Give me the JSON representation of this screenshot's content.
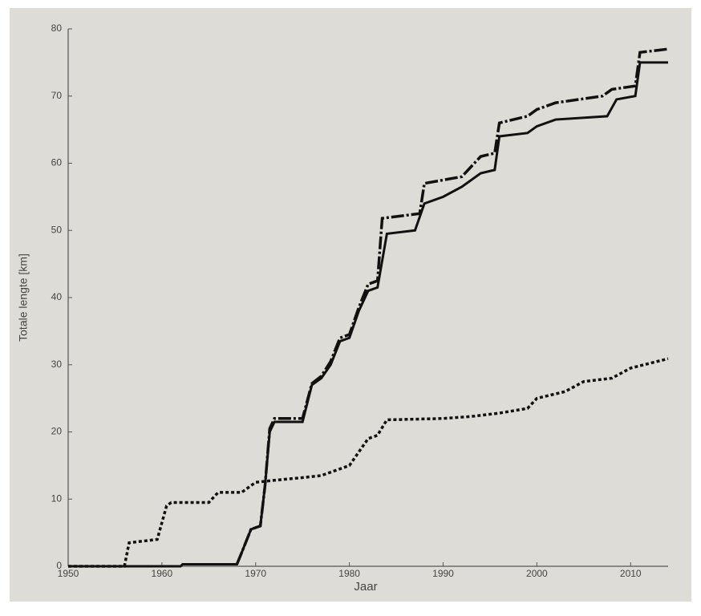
{
  "chart_data": {
    "type": "line",
    "xlabel": "Jaar",
    "ylabel": "Totale lengte [km]",
    "xlim": [
      1950,
      2014
    ],
    "xticks": [
      1950,
      1960,
      1970,
      1980,
      1990,
      2000,
      2010
    ],
    "ylim": [
      0,
      80
    ],
    "yticks": [
      0,
      10,
      20,
      30,
      40,
      50,
      60,
      70,
      80
    ],
    "grid": false,
    "series": [
      {
        "color": "#111111",
        "linestyle": "solid",
        "x": [
          1950,
          1962,
          1962.2,
          1968,
          1968.5,
          1969.5,
          1970.5,
          1971,
          1971.5,
          1972,
          1975,
          1976,
          1977,
          1978,
          1979,
          1980,
          1981,
          1982,
          1983,
          1984,
          1987,
          1988,
          1990,
          1992,
          1994,
          1995.5,
          1996,
          1999,
          2000,
          2002,
          2007.5,
          2008.5,
          2010.5,
          2011,
          2014
        ],
        "values": [
          0,
          0,
          0.3,
          0.3,
          2,
          5.5,
          6,
          12,
          20,
          21.5,
          21.5,
          27,
          28,
          30,
          33.5,
          34,
          38,
          41,
          41.5,
          49.5,
          50,
          54,
          55,
          56.5,
          58.5,
          59,
          64,
          64.5,
          65.5,
          66.5,
          67,
          69.5,
          70,
          75,
          75
        ]
      },
      {
        "color": "#111111",
        "linestyle": "dashdot",
        "x": [
          1968,
          1968.5,
          1969.5,
          1970.5,
          1971,
          1971.5,
          1972,
          1975,
          1976,
          1977,
          1978,
          1979,
          1980,
          1981,
          1982,
          1983,
          1983.5,
          1987.5,
          1988,
          1992,
          1994,
          1995.5,
          1996,
          1999,
          2000,
          2002,
          2007,
          2008,
          2010.5,
          2011,
          2014
        ],
        "values": [
          0.3,
          2,
          5.5,
          6,
          12,
          20.5,
          22,
          22,
          27.2,
          28.3,
          30.5,
          34,
          34.5,
          38.5,
          42,
          42.5,
          51.8,
          52.5,
          57,
          58,
          61,
          61.5,
          66,
          67,
          68,
          69,
          70,
          71,
          71.5,
          76.5,
          77
        ]
      },
      {
        "color": "#111111",
        "linestyle": "dotted",
        "x": [
          1950,
          1956,
          1956.5,
          1959.5,
          1960.5,
          1961,
          1965,
          1966,
          1968.5,
          1970,
          1972,
          1975,
          1977,
          1980,
          1982,
          1983,
          1984,
          1990,
          1993,
          1996,
          1999,
          2000,
          2003,
          2005,
          2008,
          2010,
          2014
        ],
        "values": [
          0,
          0,
          3.5,
          4,
          9,
          9.5,
          9.5,
          11,
          11,
          12.5,
          12.8,
          13.2,
          13.5,
          15,
          19,
          19.5,
          21.8,
          22,
          22.3,
          22.8,
          23.5,
          25,
          26,
          27.5,
          28,
          29.5,
          30.9
        ]
      }
    ]
  }
}
